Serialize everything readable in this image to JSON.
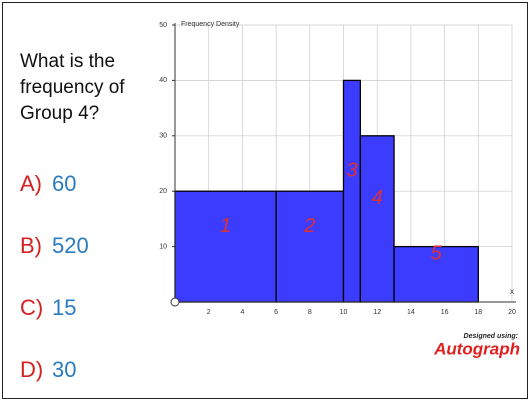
{
  "question": [
    "What is the",
    "frequency of",
    "Group 4?"
  ],
  "options": [
    {
      "letter": "A)",
      "text": "60"
    },
    {
      "letter": "B)",
      "text": "520"
    },
    {
      "letter": "C)",
      "text": "15"
    },
    {
      "letter": "D)",
      "text": "30"
    }
  ],
  "credit": {
    "caption": "Designed using:",
    "brand": "Autograph"
  },
  "chart_data": {
    "type": "histogram",
    "ylabel": "Frequency Density",
    "xlabel": "x",
    "bins": [
      0,
      6,
      10,
      11,
      13,
      18
    ],
    "values": [
      20,
      20,
      40,
      30,
      10
    ],
    "color": "#3c3cff",
    "annotations": [
      "1",
      "2",
      "3",
      "4",
      "5"
    ],
    "xlim": [
      0,
      20
    ],
    "xticks": [
      2,
      4,
      6,
      8,
      10,
      12,
      14,
      16,
      18,
      20
    ],
    "ylim": [
      0,
      50
    ],
    "yticks": [
      10,
      20,
      30,
      40,
      50
    ],
    "grid": true
  }
}
